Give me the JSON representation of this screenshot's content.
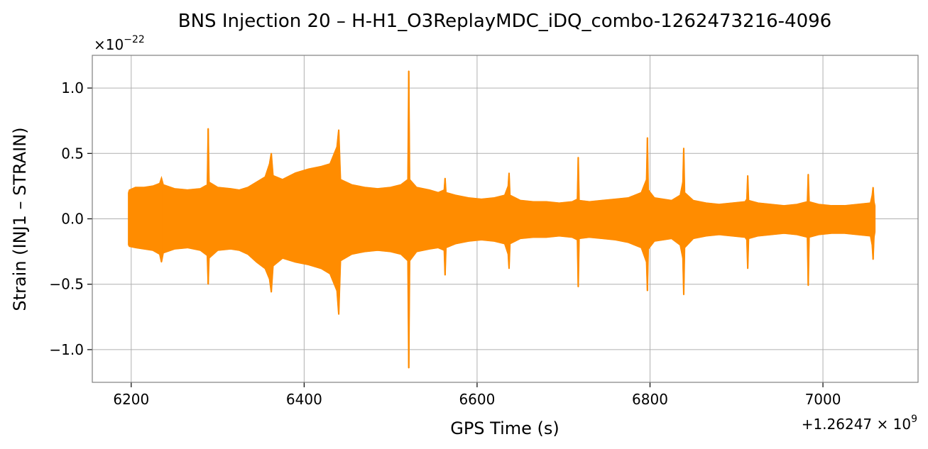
{
  "chart_data": {
    "type": "line",
    "title": "BNS Injection 20 – H-H1_O3ReplayMDC_iDQ_combo-1262473216-4096",
    "xlabel": "GPS Time (s)",
    "ylabel": "Strain (INJ1 – STRAIN)",
    "y_multiplier": "×10",
    "y_multiplier_exponent": "−22",
    "x_offset": "+1.26247 × 10",
    "x_offset_exponent": "9",
    "xlim": [
      6155,
      7110
    ],
    "ylim": [
      -1.25,
      1.25
    ],
    "x_ticks": [
      6200,
      6400,
      6600,
      6800,
      7000
    ],
    "x_tick_labels": [
      "6200",
      "6400",
      "6600",
      "6800",
      "7000"
    ],
    "y_ticks": [
      -1.0,
      -0.5,
      0.0,
      0.5,
      1.0
    ],
    "y_tick_labels": [
      "−1.0",
      "−0.5",
      "0.0",
      "0.5",
      "1.0"
    ],
    "grid": true,
    "color": "#ff8c00",
    "series": [
      {
        "name": "",
        "x": [
          6197,
          6198,
          6205,
          6215,
          6225,
          6233,
          6235,
          6237,
          6250,
          6265,
          6280,
          6288,
          6289,
          6290,
          6300,
          6315,
          6325,
          6335,
          6345,
          6355,
          6360,
          6362,
          6364,
          6375,
          6390,
          6405,
          6420,
          6430,
          6438,
          6440,
          6442,
          6455,
          6470,
          6485,
          6500,
          6512,
          6520,
          6521,
          6522,
          6530,
          6545,
          6555,
          6562,
          6563,
          6564,
          6575,
          6590,
          6605,
          6620,
          6632,
          6636,
          6637,
          6638,
          6650,
          6665,
          6680,
          6695,
          6710,
          6716,
          6717,
          6718,
          6730,
          6745,
          6760,
          6775,
          6790,
          6796,
          6797,
          6798,
          6805,
          6815,
          6825,
          6835,
          6838,
          6839,
          6840,
          6850,
          6865,
          6880,
          6895,
          6910,
          6912,
          6913,
          6914,
          6925,
          6940,
          6955,
          6970,
          6982,
          6983,
          6984,
          6995,
          7010,
          7025,
          7040,
          7055,
          7057,
          7058,
          7059,
          7060
        ],
        "upper": [
          0.2,
          0.22,
          0.24,
          0.24,
          0.25,
          0.27,
          0.31,
          0.26,
          0.23,
          0.22,
          0.23,
          0.26,
          0.69,
          0.28,
          0.24,
          0.23,
          0.22,
          0.24,
          0.28,
          0.32,
          0.42,
          0.5,
          0.33,
          0.3,
          0.35,
          0.38,
          0.4,
          0.42,
          0.55,
          0.68,
          0.3,
          0.26,
          0.24,
          0.23,
          0.24,
          0.26,
          0.3,
          1.13,
          0.3,
          0.24,
          0.22,
          0.2,
          0.22,
          0.31,
          0.2,
          0.18,
          0.16,
          0.15,
          0.16,
          0.18,
          0.25,
          0.35,
          0.18,
          0.14,
          0.13,
          0.13,
          0.12,
          0.13,
          0.15,
          0.47,
          0.14,
          0.13,
          0.14,
          0.15,
          0.16,
          0.2,
          0.3,
          0.62,
          0.22,
          0.16,
          0.15,
          0.14,
          0.18,
          0.28,
          0.54,
          0.2,
          0.14,
          0.12,
          0.11,
          0.12,
          0.13,
          0.15,
          0.33,
          0.14,
          0.12,
          0.11,
          0.1,
          0.11,
          0.13,
          0.34,
          0.13,
          0.11,
          0.1,
          0.1,
          0.11,
          0.12,
          0.18,
          0.24,
          0.13,
          0.1
        ],
        "lower": [
          -0.2,
          -0.21,
          -0.22,
          -0.23,
          -0.24,
          -0.27,
          -0.33,
          -0.26,
          -0.23,
          -0.22,
          -0.24,
          -0.28,
          -0.5,
          -0.3,
          -0.24,
          -0.23,
          -0.24,
          -0.27,
          -0.33,
          -0.38,
          -0.46,
          -0.56,
          -0.36,
          -0.3,
          -0.33,
          -0.35,
          -0.38,
          -0.42,
          -0.55,
          -0.73,
          -0.32,
          -0.27,
          -0.25,
          -0.24,
          -0.25,
          -0.27,
          -0.32,
          -1.14,
          -0.32,
          -0.25,
          -0.23,
          -0.22,
          -0.24,
          -0.43,
          -0.22,
          -0.19,
          -0.17,
          -0.16,
          -0.17,
          -0.19,
          -0.27,
          -0.38,
          -0.19,
          -0.15,
          -0.14,
          -0.14,
          -0.13,
          -0.14,
          -0.16,
          -0.52,
          -0.15,
          -0.14,
          -0.15,
          -0.16,
          -0.18,
          -0.22,
          -0.33,
          -0.55,
          -0.23,
          -0.17,
          -0.16,
          -0.15,
          -0.2,
          -0.3,
          -0.58,
          -0.22,
          -0.15,
          -0.13,
          -0.12,
          -0.13,
          -0.14,
          -0.16,
          -0.38,
          -0.15,
          -0.13,
          -0.12,
          -0.11,
          -0.12,
          -0.14,
          -0.51,
          -0.14,
          -0.12,
          -0.11,
          -0.11,
          -0.12,
          -0.13,
          -0.2,
          -0.31,
          -0.14,
          -0.1
        ]
      }
    ]
  }
}
